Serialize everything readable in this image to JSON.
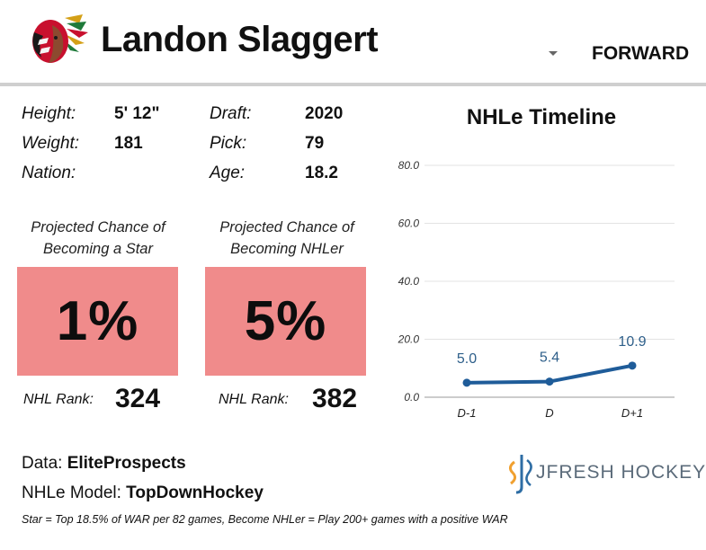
{
  "header": {
    "player_name": "Landon Slaggert",
    "position": "FORWARD"
  },
  "bio": {
    "height_label": "Height:",
    "height_value": "5' 12\"",
    "weight_label": "Weight:",
    "weight_value": "181",
    "nation_label": "Nation:",
    "nation_value": "",
    "draft_label": "Draft:",
    "draft_value": "2020",
    "pick_label": "Pick:",
    "pick_value": "79",
    "age_label": "Age:",
    "age_value": "18.2"
  },
  "projections": {
    "star": {
      "caption_line1": "Projected Chance of",
      "caption_line2": "Becoming a Star",
      "value": "1%",
      "rank_label": "NHL Rank:",
      "rank_value": "324"
    },
    "nhler": {
      "caption_line1": "Projected Chance of",
      "caption_line2": "Becoming NHLer",
      "value": "5%",
      "rank_label": "NHL Rank:",
      "rank_value": "382"
    }
  },
  "colors": {
    "card_fill": "#f08b8b",
    "line": "#1f5c99",
    "label": "#2e5f8a",
    "grid": "#e3e3e3"
  },
  "chart_data": {
    "type": "line",
    "title": "NHLe Timeline",
    "categories": [
      "D-1",
      "D",
      "D+1"
    ],
    "values": [
      5.0,
      5.4,
      10.9
    ],
    "data_labels": [
      "5.0",
      "5.4",
      "10.9"
    ],
    "y_ticks": [
      "0.0",
      "20.0",
      "40.0",
      "60.0",
      "80.0"
    ],
    "ylim": [
      0,
      80
    ],
    "xlabel": "",
    "ylabel": "",
    "grid": true
  },
  "footer": {
    "data_label": "Data: ",
    "data_value": "EliteProspects",
    "model_label": "NHLe Model: ",
    "model_value": "TopDownHockey",
    "footnote": "Star = Top 18.5% of WAR per 82 games, Become NHLer = Play 200+ games with a positive WAR",
    "brand": "JFRESH HOCKEY"
  }
}
